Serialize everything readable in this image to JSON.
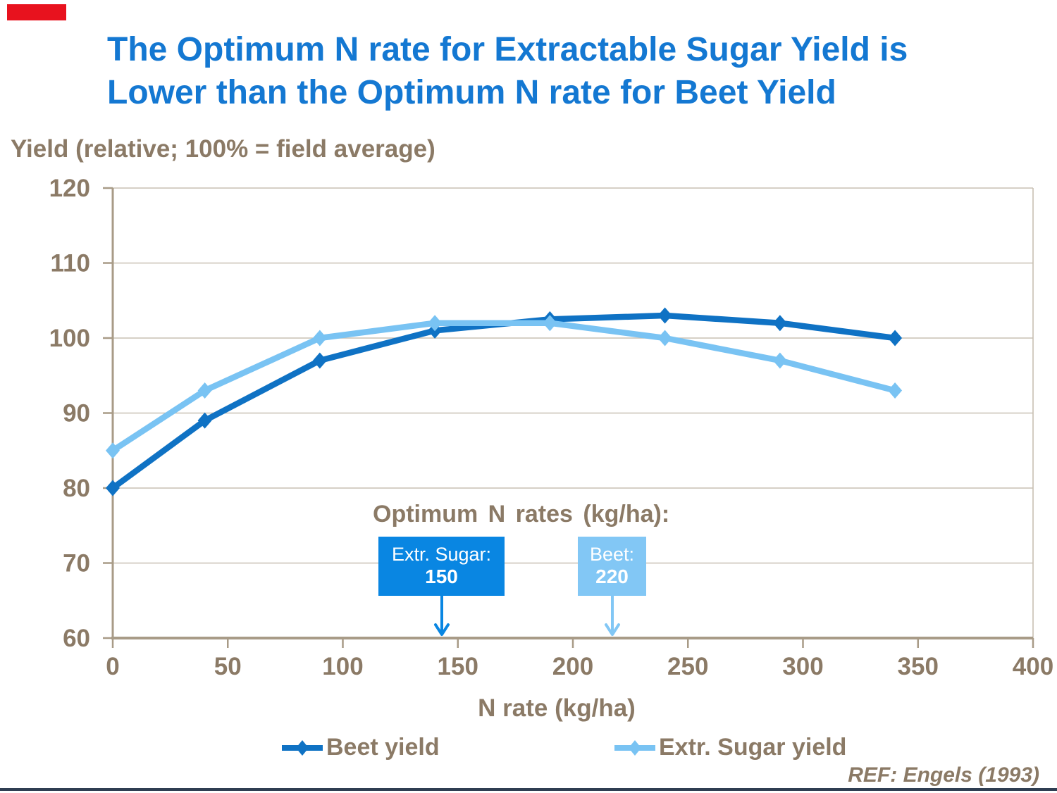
{
  "page": {
    "title_line1": "The Optimum N rate for Extractable Sugar Yield is",
    "title_line2": "Lower than the Optimum N rate for Beet Yield",
    "ref_text": "REF: Engels (1993)",
    "colors": {
      "title_blue": "#1478d2",
      "beet_blue": "#0f72c4",
      "sugar_blue": "#79c3f3",
      "box_dark": "#0986e2",
      "box_light": "#82c7f5",
      "text_brown": "#8b7a66",
      "grid": "#c8c0b3",
      "axis": "#a89b87",
      "bottom_bar": "#2f3e52",
      "logo_red": "#e8121e"
    }
  },
  "chart_data": {
    "type": "line",
    "title": "",
    "ylabel": "Yield (relative; 100% = field average)",
    "xlabel": "N rate (kg/ha)",
    "x": [
      0,
      40,
      90,
      140,
      190,
      240,
      290,
      340
    ],
    "series": [
      {
        "name": "Beet yield",
        "color": "#0f72c4",
        "marker": "diamond",
        "values": [
          80,
          89,
          97,
          101,
          102.5,
          103,
          102,
          100
        ]
      },
      {
        "name": "Extr. Sugar yield",
        "color": "#79c3f3",
        "marker": "diamond",
        "values": [
          85,
          93,
          100,
          102,
          102,
          100,
          97,
          93
        ]
      }
    ],
    "xlim": [
      0,
      400
    ],
    "ylim": [
      60,
      120
    ],
    "xticks": [
      0,
      50,
      100,
      150,
      200,
      250,
      300,
      350,
      400
    ],
    "yticks": [
      60,
      70,
      80,
      90,
      100,
      110,
      120
    ],
    "grid": true,
    "legend_position": "bottom"
  },
  "annotation": {
    "heading": "Optimum N rates (kg/ha):",
    "boxes": [
      {
        "label": "Extr. Sugar:",
        "value": "150",
        "x_value": 150
      },
      {
        "label": "Beet:",
        "value": "220",
        "x_value": 220
      }
    ]
  }
}
